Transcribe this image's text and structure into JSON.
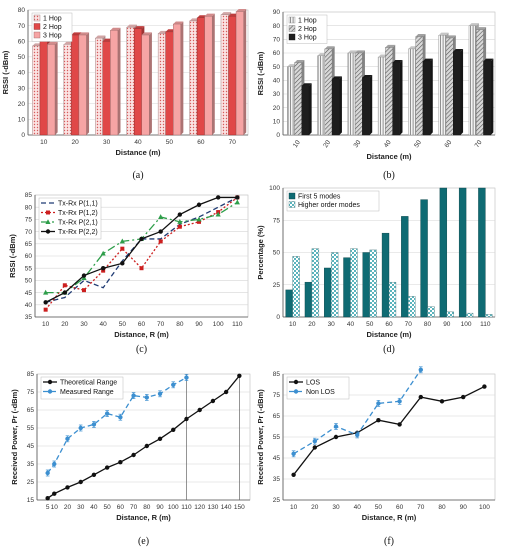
{
  "chart_data": [
    {
      "id": "a",
      "type": "bar",
      "caption": "(a)",
      "xlabel": "Distance (m)",
      "ylabel": "RSSI (-dBm)",
      "ylim": [
        0,
        80
      ],
      "yticks": [
        0,
        10,
        20,
        30,
        40,
        50,
        60,
        70,
        80
      ],
      "grid": true,
      "legend": "top-left",
      "depth3d": true,
      "categories": [
        "10",
        "20",
        "30",
        "40",
        "50",
        "60",
        "70"
      ],
      "series": [
        {
          "name": "1 Hop",
          "color": "#f6c2c2",
          "pattern": "dots",
          "values": [
            57,
            58,
            62,
            69,
            65,
            73,
            77
          ]
        },
        {
          "name": "2 Hop",
          "color": "#e04848",
          "pattern": "solid",
          "values": [
            60,
            64,
            60,
            68,
            66,
            75,
            76
          ]
        },
        {
          "name": "3 Hop",
          "color": "#f6a4a4",
          "pattern": "solid",
          "values": [
            58,
            64,
            67,
            64,
            71,
            76,
            79
          ]
        }
      ]
    },
    {
      "id": "b",
      "type": "bar",
      "caption": "(b)",
      "xlabel": "Distance (m)",
      "ylabel": "RSSI (-dBm)",
      "ylim": [
        0,
        90
      ],
      "yticks": [
        0,
        10,
        20,
        30,
        40,
        50,
        60,
        70,
        80,
        90
      ],
      "grid": true,
      "legend": "top-left",
      "depth3d": true,
      "categories": [
        "10",
        "20",
        "30",
        "40",
        "50",
        "60",
        "70"
      ],
      "series": [
        {
          "name": "1 Hop",
          "color": "#e8e8e8",
          "pattern": "vlines",
          "values": [
            50,
            58,
            60,
            57,
            63,
            73,
            80
          ]
        },
        {
          "name": "2 Hop",
          "color": "#bdbdbd",
          "pattern": "hatch",
          "values": [
            53,
            63,
            60,
            64,
            72,
            71,
            77
          ]
        },
        {
          "name": "3 Hop",
          "color": "#1e1e1e",
          "pattern": "solid",
          "values": [
            36,
            41,
            42,
            53,
            54,
            61,
            54
          ]
        }
      ]
    },
    {
      "id": "c",
      "type": "line",
      "caption": "(c)",
      "xlabel": "Distance, R (m)",
      "ylabel": "RSSI (-dBm)",
      "ylim": [
        35,
        85
      ],
      "yticks": [
        35,
        40,
        45,
        50,
        55,
        60,
        65,
        70,
        75,
        80,
        85
      ],
      "grid": true,
      "legend": "top-left",
      "x": [
        10,
        20,
        30,
        40,
        50,
        60,
        70,
        80,
        90,
        100,
        110
      ],
      "series": [
        {
          "name": "Tx-Rx P(1,1)",
          "color": "#1f3b73",
          "dash": "5,3",
          "marker": "none",
          "values": [
            41,
            43,
            50,
            47,
            58,
            67,
            67,
            73,
            76,
            80,
            84
          ]
        },
        {
          "name": "Tx-Rx P(1,2)",
          "color": "#cc1f1f",
          "dash": "2,2",
          "marker": "square",
          "values": [
            38,
            48,
            46,
            54,
            63,
            55,
            66,
            72,
            74,
            78,
            84
          ]
        },
        {
          "name": "Tx-Rx P(2,1)",
          "color": "#2e9e4a",
          "dash": "8,3,2,3",
          "marker": "triangle",
          "values": [
            45,
            45,
            51,
            61,
            66,
            67,
            76,
            74,
            75,
            77,
            82
          ]
        },
        {
          "name": "Tx-Rx P(2,2)",
          "color": "#111111",
          "dash": "",
          "marker": "circle",
          "values": [
            41,
            45,
            52,
            55,
            57,
            67,
            70,
            77,
            81,
            84,
            84
          ]
        }
      ]
    },
    {
      "id": "d",
      "type": "bar",
      "caption": "(d)",
      "xlabel": "Distance (m)",
      "ylabel": "Percentage (%)",
      "ylim": [
        0,
        100
      ],
      "yticks": [
        0,
        25,
        50,
        75,
        100
      ],
      "grid": true,
      "legend": "top-left",
      "categories": [
        "10",
        "20",
        "30",
        "40",
        "50",
        "60",
        "70",
        "80",
        "90",
        "100",
        "110"
      ],
      "series": [
        {
          "name": "First 5 modes",
          "color": "#0f6b73",
          "pattern": "solid",
          "values": [
            21,
            27,
            38,
            46,
            50,
            65,
            78,
            91,
            100,
            100,
            100
          ]
        },
        {
          "name": "Higher order modes",
          "color": "#7fc8cf",
          "pattern": "check",
          "values": [
            47,
            53,
            50,
            53,
            52,
            27,
            16,
            8,
            4,
            3,
            2
          ]
        }
      ]
    },
    {
      "id": "e",
      "type": "line",
      "caption": "(e)",
      "xlabel": "Distance, R (m)",
      "ylabel": "Received Power, Pr (-dBm)",
      "ylim": [
        15,
        85
      ],
      "yticks": [
        15,
        25,
        35,
        45,
        55,
        65,
        75,
        85
      ],
      "grid": true,
      "legend": "top-left",
      "x": [
        5,
        10,
        20,
        30,
        40,
        50,
        60,
        70,
        80,
        90,
        100,
        110,
        120,
        130,
        140,
        150
      ],
      "vlines": [
        110,
        150
      ],
      "series": [
        {
          "name": "Theoretical Range",
          "color": "#111111",
          "dash": "",
          "marker": "circle",
          "points": [
            [
              5,
              16
            ],
            [
              10,
              18.5
            ],
            [
              20,
              22
            ],
            [
              30,
              25
            ],
            [
              40,
              29
            ],
            [
              50,
              33
            ],
            [
              60,
              36
            ],
            [
              70,
              40
            ],
            [
              80,
              45
            ],
            [
              90,
              49
            ],
            [
              100,
              54
            ],
            [
              110,
              60
            ],
            [
              120,
              65
            ],
            [
              130,
              70
            ],
            [
              140,
              75
            ],
            [
              150,
              84
            ]
          ]
        },
        {
          "name": "Measured Range",
          "color": "#3c8fd0",
          "dash": "5,3",
          "marker": "circle",
          "errorbars": true,
          "points": [
            [
              5,
              30
            ],
            [
              10,
              35
            ],
            [
              20,
              49
            ],
            [
              30,
              55
            ],
            [
              40,
              57
            ],
            [
              50,
              63
            ],
            [
              60,
              61
            ],
            [
              70,
              73
            ],
            [
              80,
              72
            ],
            [
              90,
              74
            ],
            [
              100,
              79
            ],
            [
              110,
              83
            ]
          ]
        }
      ]
    },
    {
      "id": "f",
      "type": "line",
      "caption": "(f)",
      "xlabel": "Distance, R (m)",
      "ylabel": "Received Power, Pr (-dBm)",
      "ylim": [
        25,
        85
      ],
      "yticks": [
        25,
        35,
        45,
        55,
        65,
        75,
        85
      ],
      "grid": true,
      "legend": "top-left",
      "x": [
        10,
        20,
        30,
        40,
        50,
        60,
        70,
        80,
        90,
        100
      ],
      "series": [
        {
          "name": "LOS",
          "color": "#111111",
          "dash": "",
          "marker": "circle",
          "points": [
            [
              10,
              37
            ],
            [
              20,
              50
            ],
            [
              30,
              55
            ],
            [
              40,
              57
            ],
            [
              50,
              63
            ],
            [
              60,
              61
            ],
            [
              70,
              74
            ],
            [
              80,
              72
            ],
            [
              90,
              74
            ],
            [
              100,
              79
            ]
          ]
        },
        {
          "name": "Non LOS",
          "color": "#3c8fd0",
          "dash": "5,3",
          "marker": "circle",
          "errorbars": true,
          "points": [
            [
              10,
              47
            ],
            [
              20,
              53
            ],
            [
              30,
              60
            ],
            [
              40,
              56
            ],
            [
              50,
              71
            ],
            [
              60,
              72
            ],
            [
              70,
              87
            ]
          ]
        }
      ]
    }
  ]
}
